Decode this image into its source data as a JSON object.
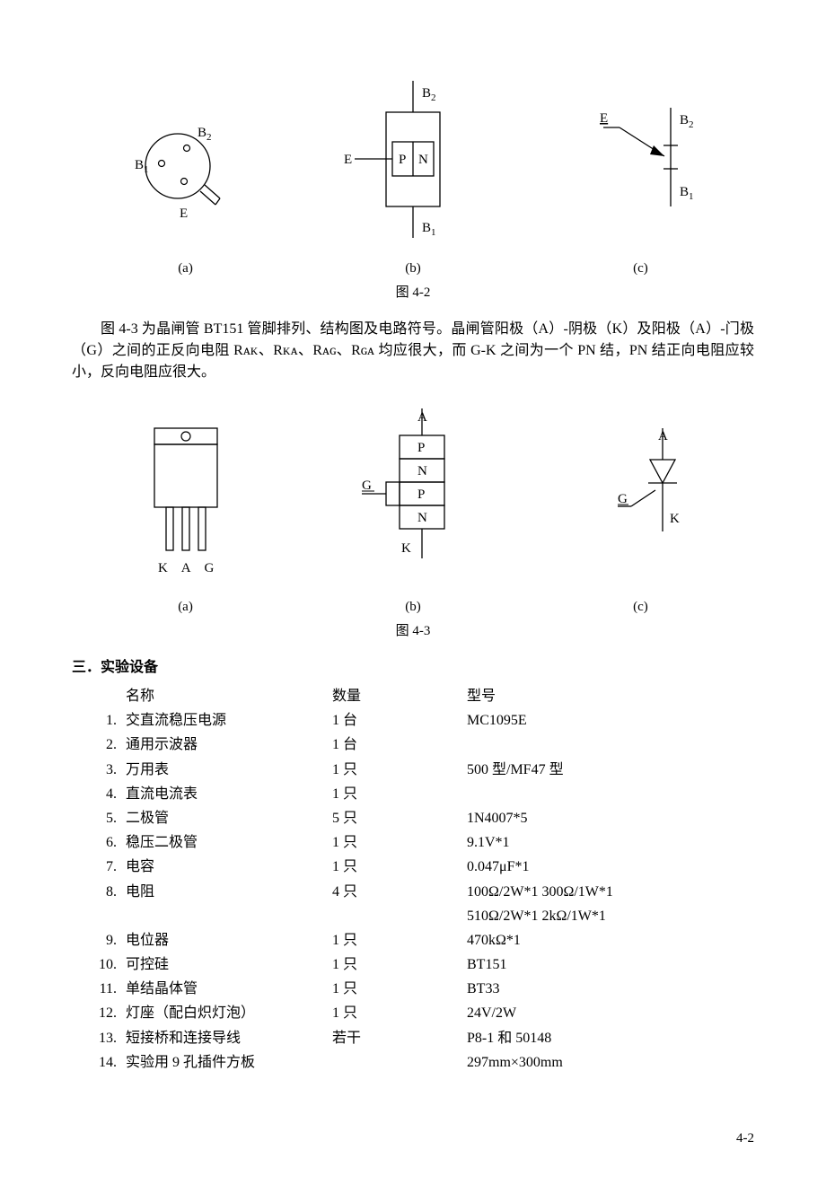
{
  "fig42": {
    "caption": "图 4-2",
    "sub_a": "(a)",
    "sub_b": "(b)",
    "sub_c": "(c)",
    "labels": {
      "B1": "B₁",
      "B2": "B₂",
      "E": "E",
      "P": "P",
      "N": "N"
    },
    "svg": {
      "stroke": "#000000",
      "fill": "#ffffff",
      "stroke_width": 1.3,
      "font_size": 15,
      "font_family": "SimSun, serif"
    }
  },
  "paragraph": "图 4-3 为晶闸管 BT151 管脚排列、结构图及电路符号。晶闸管阳极（A）-阴极（K）及阳极（A）-门极（G）之间的正反向电阻 Rᴀᴋ、Rᴋᴀ、Rᴀɢ、Rɢᴀ 均应很大，而 G-K 之间为一个 PN 结，PN 结正向电阻应较小，反向电阻应很大。",
  "fig43": {
    "caption": "图 4-3",
    "sub_a": "(a)",
    "sub_b": "(b)",
    "sub_c": "(c)",
    "labels": {
      "A": "A",
      "K": "K",
      "G": "G",
      "P": "P",
      "N": "N",
      "KAG": "K A G"
    },
    "svg": {
      "stroke": "#000000",
      "fill": "#ffffff",
      "stroke_width": 1.3,
      "font_size": 15,
      "font_family": "SimSun, serif"
    }
  },
  "section_title": "三．实验设备",
  "equip_header": {
    "name": "名称",
    "qty": "数量",
    "model": "型号"
  },
  "equipment": [
    {
      "num": "1.",
      "name": "交直流稳压电源",
      "qty": "1 台",
      "model": "MC1095E"
    },
    {
      "num": "2.",
      "name": "通用示波器",
      "qty": "1 台",
      "model": ""
    },
    {
      "num": "3.",
      "name": "万用表",
      "qty": "1 只",
      "model": "500 型/MF47 型"
    },
    {
      "num": "4.",
      "name": "直流电流表",
      "qty": "1 只",
      "model": ""
    },
    {
      "num": "5.",
      "name": "二极管",
      "qty": "5 只",
      "model": "1N4007*5"
    },
    {
      "num": "6.",
      "name": "稳压二极管",
      "qty": "1 只",
      "model": "9.1V*1"
    },
    {
      "num": "7.",
      "name": "电容",
      "qty": "1 只",
      "model": "0.047μF*1"
    },
    {
      "num": "8.",
      "name": "电阻",
      "qty": "4 只",
      "model": "100Ω/2W*1 300Ω/1W*1"
    },
    {
      "num": "",
      "name": "",
      "qty": "",
      "model": "510Ω/2W*1 2kΩ/1W*1"
    },
    {
      "num": "9.",
      "name": "电位器",
      "qty": "1 只",
      "model": "470kΩ*1"
    },
    {
      "num": "10.",
      "name": "可控硅",
      "qty": "1 只",
      "model": "BT151"
    },
    {
      "num": "11.",
      "name": "单结晶体管",
      "qty": "1 只",
      "model": "BT33"
    },
    {
      "num": "12.",
      "name": "灯座（配白炽灯泡）",
      "qty": "1 只",
      "model": "24V/2W"
    },
    {
      "num": "13.",
      "name": "短接桥和连接导线",
      "qty": "若干",
      "model": "P8-1 和 50148"
    },
    {
      "num": "14.",
      "name": "实验用 9 孔插件方板",
      "qty": "",
      "model": "297mm×300mm"
    }
  ],
  "page_number": "4-2"
}
